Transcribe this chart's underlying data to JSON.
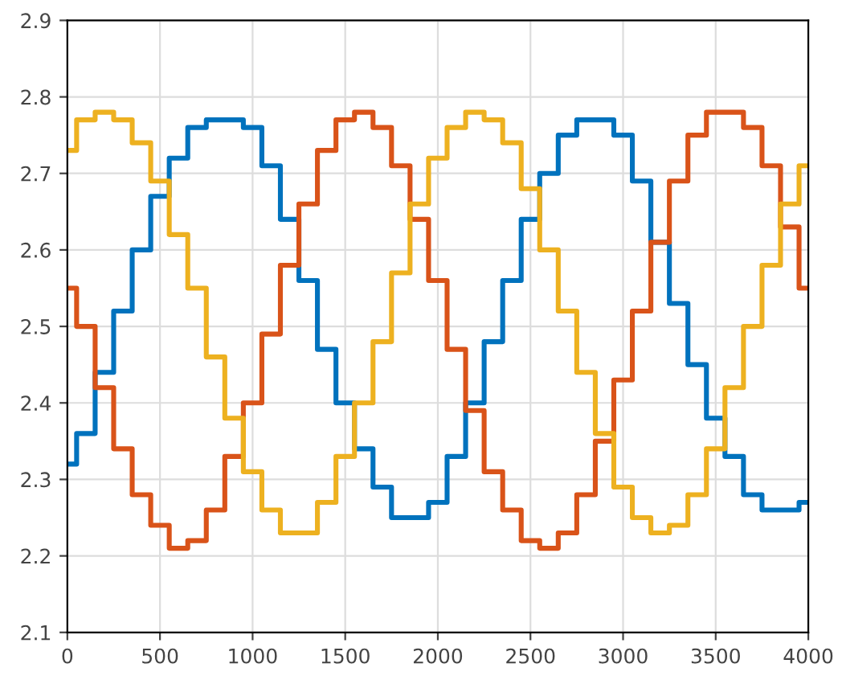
{
  "chart_data": {
    "type": "step",
    "xlim": [
      0,
      4000
    ],
    "xticks": [
      0,
      500,
      1000,
      1500,
      2000,
      2500,
      3000,
      3500,
      4000
    ],
    "ylim": [
      2.1,
      2.9
    ],
    "yticks": [
      2.1,
      2.2,
      2.3,
      2.4,
      2.5,
      2.6,
      2.7,
      2.8,
      2.9
    ],
    "grid": true,
    "x": [
      0,
      100,
      200,
      300,
      400,
      500,
      600,
      700,
      800,
      900,
      1000,
      1100,
      1200,
      1300,
      1400,
      1500,
      1600,
      1700,
      1800,
      1900,
      2000,
      2100,
      2200,
      2300,
      2400,
      2500,
      2600,
      2700,
      2800,
      2900,
      3000,
      3100,
      3200,
      3300,
      3400,
      3500,
      3600,
      3700,
      3800,
      3900,
      4000
    ],
    "series": [
      {
        "color": "#0072bd",
        "values": [
          2.32,
          2.36,
          2.44,
          2.52,
          2.6,
          2.67,
          2.72,
          2.76,
          2.77,
          2.77,
          2.76,
          2.71,
          2.64,
          2.56,
          2.47,
          2.4,
          2.34,
          2.29,
          2.25,
          2.25,
          2.27,
          2.33,
          2.4,
          2.48,
          2.56,
          2.64,
          2.7,
          2.75,
          2.77,
          2.77,
          2.75,
          2.69,
          2.61,
          2.53,
          2.45,
          2.38,
          2.33,
          2.28,
          2.26,
          2.26,
          2.27
        ]
      },
      {
        "color": "#d95319",
        "values": [
          2.55,
          2.5,
          2.42,
          2.34,
          2.28,
          2.24,
          2.21,
          2.22,
          2.26,
          2.33,
          2.4,
          2.49,
          2.58,
          2.66,
          2.73,
          2.77,
          2.78,
          2.76,
          2.71,
          2.64,
          2.56,
          2.47,
          2.39,
          2.31,
          2.26,
          2.22,
          2.21,
          2.23,
          2.28,
          2.35,
          2.43,
          2.52,
          2.61,
          2.69,
          2.75,
          2.78,
          2.78,
          2.76,
          2.71,
          2.63,
          2.55
        ]
      },
      {
        "color": "#edb120",
        "values": [
          2.73,
          2.77,
          2.78,
          2.77,
          2.74,
          2.69,
          2.62,
          2.55,
          2.46,
          2.38,
          2.31,
          2.26,
          2.23,
          2.23,
          2.27,
          2.33,
          2.4,
          2.48,
          2.57,
          2.66,
          2.72,
          2.76,
          2.78,
          2.77,
          2.74,
          2.68,
          2.6,
          2.52,
          2.44,
          2.36,
          2.29,
          2.25,
          2.23,
          2.24,
          2.28,
          2.34,
          2.42,
          2.5,
          2.58,
          2.66,
          2.71
        ]
      }
    ]
  }
}
